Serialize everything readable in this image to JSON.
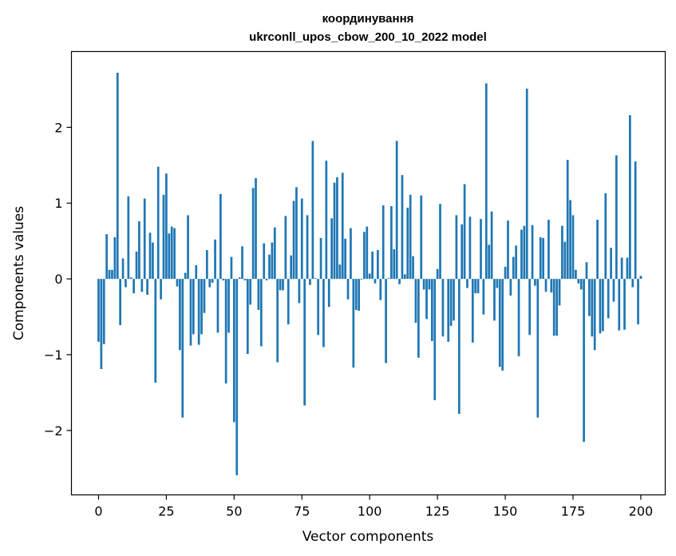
{
  "chart_data": {
    "type": "bar",
    "title_line1": "координування",
    "title_line2": "ukrconll_upos_cbow_200_10_2022 model",
    "xlabel": "Vector components",
    "ylabel": "Components values",
    "xlim": [
      -10,
      209
    ],
    "ylim": [
      -2.85,
      3.0
    ],
    "xticks": [
      0,
      25,
      50,
      75,
      100,
      125,
      150,
      175,
      200
    ],
    "yticks": [
      -2,
      -1,
      0,
      1,
      2
    ],
    "ytick_labels": [
      "−2",
      "−1",
      "0",
      "1",
      "2"
    ],
    "grid": false,
    "bar_color": "#1f77b4",
    "values": [
      -0.83,
      -1.19,
      -0.86,
      0.59,
      0.12,
      0.12,
      0.55,
      2.72,
      -0.61,
      0.27,
      -0.11,
      1.09,
      0.02,
      -0.19,
      0.36,
      0.76,
      -0.17,
      1.06,
      -0.21,
      0.61,
      0.48,
      -1.37,
      1.48,
      -0.27,
      1.11,
      1.39,
      0.6,
      0.69,
      0.67,
      -0.1,
      -0.94,
      -1.83,
      0.08,
      0.84,
      -0.88,
      -0.73,
      0.18,
      -0.87,
      -0.73,
      -0.45,
      0.38,
      -0.11,
      -0.05,
      0.52,
      -0.71,
      1.12,
      -0.02,
      -1.38,
      -0.71,
      0.29,
      -1.89,
      -2.59,
      0.02,
      0.43,
      -0.02,
      -0.99,
      -0.34,
      1.2,
      1.33,
      -0.41,
      -0.89,
      0.47,
      -0.02,
      0.32,
      0.48,
      0.68,
      -1.1,
      -0.15,
      -0.15,
      0.83,
      -0.6,
      0.31,
      1.03,
      1.21,
      -0.32,
      1.06,
      -1.67,
      0.84,
      -0.08,
      1.82,
      0.01,
      -0.74,
      0.54,
      -0.9,
      1.56,
      -0.37,
      0.8,
      1.27,
      1.34,
      0.19,
      1.4,
      0.53,
      -0.27,
      0.67,
      -1.17,
      -0.41,
      -0.42,
      -0.01,
      0.62,
      0.69,
      0.07,
      0.36,
      -0.06,
      0.38,
      -0.28,
      0.97,
      -1.11,
      0.01,
      0.96,
      0.39,
      1.82,
      -0.07,
      1.37,
      0.06,
      0.94,
      1.11,
      0.3,
      -0.58,
      -1.04,
      1.1,
      -0.14,
      -0.53,
      -0.14,
      -0.82,
      -1.6,
      0.13,
      0.99,
      -0.76,
      0.0,
      -0.83,
      -0.62,
      -0.55,
      0.84,
      -1.78,
      0.72,
      1.25,
      -0.12,
      0.82,
      -0.84,
      -0.19,
      -0.19,
      0.79,
      -0.47,
      2.58,
      0.45,
      0.89,
      -0.55,
      -0.12,
      -1.16,
      -1.21,
      0.16,
      0.77,
      -0.22,
      0.29,
      0.44,
      -1.02,
      0.65,
      0.7,
      2.51,
      -0.74,
      0.71,
      -0.09,
      -1.83,
      0.55,
      0.54,
      -0.17,
      0.78,
      -0.18,
      -0.75,
      -0.75,
      -0.35,
      0.7,
      0.49,
      1.57,
      1.04,
      0.84,
      0.12,
      -0.06,
      -0.14,
      -2.15,
      0.22,
      -0.49,
      -0.76,
      -0.94,
      0.78,
      -0.72,
      -0.69,
      1.13,
      -0.52,
      0.41,
      -0.3,
      1.63,
      -0.68,
      0.28,
      -0.67,
      0.28,
      2.16,
      -0.11,
      1.55,
      -0.6,
      0.04
    ]
  }
}
